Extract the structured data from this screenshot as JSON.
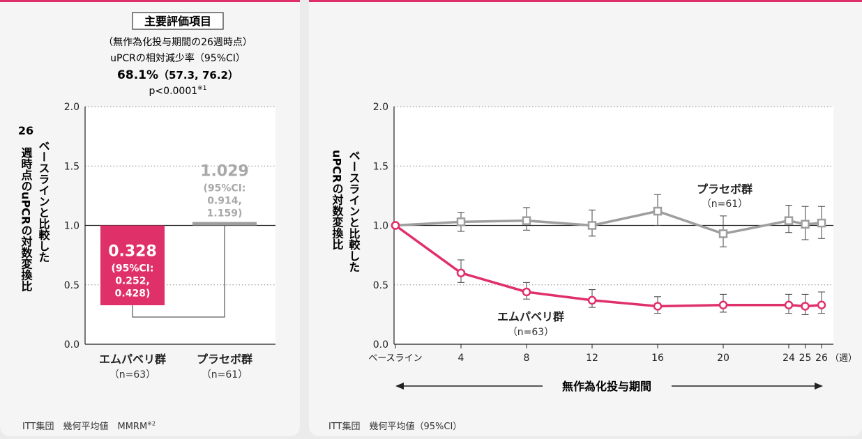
{
  "left": {
    "badge": "主要評価項目",
    "subtitle": "（無作為化投与期間の26週時点）",
    "metric": "uPCRの相対減少率（95%CI）",
    "main_value": "68.1%",
    "main_ci": "（57.3, 76.2）",
    "p_value": "p<0.0001",
    "p_note": "※1",
    "ylabel_lines": [
      "26",
      "週時点のuPCRの対数変換比",
      "ベースラインと比較した"
    ],
    "footnote": "ITT集団　幾何平均値　MMRM",
    "footnote_mark": "※2"
  },
  "right": {
    "ylabel_lines": [
      "uPCRの対数変換比",
      "ベースラインと比較した"
    ],
    "x_unit": "（週）",
    "period_label": "無作為化投与期間",
    "footnote": "ITT集団　幾何平均値（95%CI）"
  },
  "colors": {
    "iptacopan": "#e0306a",
    "placebo": "#9e9e9e",
    "accent": "#e0306a"
  },
  "chart_data": [
    {
      "type": "bar",
      "categories": [
        "エムパベリ群",
        "プラセボ群"
      ],
      "category_sub": [
        "（n=63）",
        "（n=61）"
      ],
      "values": [
        0.328,
        1.029
      ],
      "bar_value_labels": [
        "0.328",
        "1.029"
      ],
      "bar_ci_labels": [
        [
          "(95%CI:",
          "0.252,",
          "0.428)"
        ],
        [
          "(95%CI:",
          "0.914,",
          "1.159)"
        ]
      ],
      "baseline": 1.0,
      "ylim": [
        0,
        2
      ],
      "yticks": [
        "0.0",
        "0.5",
        "1.0",
        "1.5",
        "2.0"
      ],
      "grid": "dotted horizontal"
    },
    {
      "type": "line",
      "x": [
        "ベースライン",
        "4",
        "8",
        "12",
        "16",
        "20",
        "24",
        "25",
        "26"
      ],
      "x_weeks": [
        0,
        4,
        8,
        12,
        16,
        20,
        24,
        25,
        26
      ],
      "ylim": [
        0,
        2
      ],
      "yticks": [
        "0.0",
        "0.5",
        "1.0",
        "1.5",
        "2.0"
      ],
      "grid": "dotted horizontal",
      "series": [
        {
          "name": "プラセボ群",
          "sub": "（n=61）",
          "marker": "square",
          "color": "#9e9e9e",
          "values": [
            1.0,
            1.03,
            1.04,
            1.0,
            1.12,
            0.93,
            1.04,
            1.01,
            1.02
          ],
          "ci_low": [
            1.0,
            0.95,
            0.96,
            0.91,
            1.0,
            0.82,
            0.94,
            0.88,
            0.89
          ],
          "ci_high": [
            1.0,
            1.11,
            1.15,
            1.13,
            1.26,
            1.08,
            1.17,
            1.16,
            1.16
          ]
        },
        {
          "name": "エムパベリ群",
          "sub": "（n=63）",
          "marker": "circle",
          "color": "#e0306a",
          "values": [
            1.0,
            0.6,
            0.44,
            0.37,
            0.32,
            0.33,
            0.33,
            0.32,
            0.33
          ],
          "ci_low": [
            1.0,
            0.52,
            0.38,
            0.31,
            0.26,
            0.27,
            0.26,
            0.25,
            0.26
          ],
          "ci_high": [
            1.0,
            0.71,
            0.52,
            0.46,
            0.4,
            0.42,
            0.42,
            0.42,
            0.44
          ]
        }
      ]
    }
  ]
}
